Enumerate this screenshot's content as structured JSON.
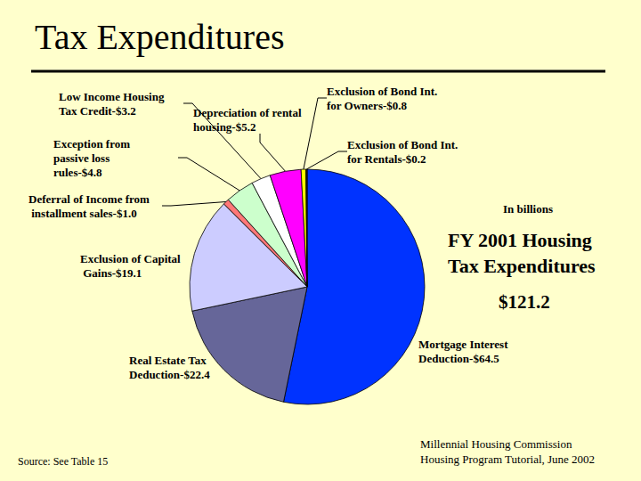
{
  "chart_data": {
    "type": "pie",
    "title": "Tax Expenditures",
    "subtitle": "FY 2001 Housing Tax Expenditures",
    "annotations": {
      "units": "In billions",
      "total": "$121.2",
      "source": "Source: See Table 15",
      "credit": [
        "Millennial Housing Commission",
        "Housing Program Tutorial, June 2002"
      ]
    },
    "categories": [
      "Mortgage Interest Deduction-$64.5",
      "Real Estate Tax Deduction-$22.4",
      "Exclusion of Capital Gains-$19.1",
      "Deferral of Income from installment sales-$1.0",
      "Exception from passive loss rules-$4.8",
      "Low Income Housing Tax Credit-$3.2",
      "Depreciation of rental housing-$5.2",
      "Exclusion of Bond Int. for Owners-$0.8",
      "Exclusion of Bond Int. for Rentals-$0.2"
    ],
    "values": [
      64.5,
      22.4,
      19.1,
      1.0,
      4.8,
      3.2,
      5.2,
      0.8,
      0.2
    ],
    "colors": [
      "#0033FF",
      "#666699",
      "#CCCCFF",
      "#FF7777",
      "#CCFFCC",
      "#FFFFFF",
      "#FF00FF",
      "#FFFF00",
      "#333300"
    ]
  }
}
